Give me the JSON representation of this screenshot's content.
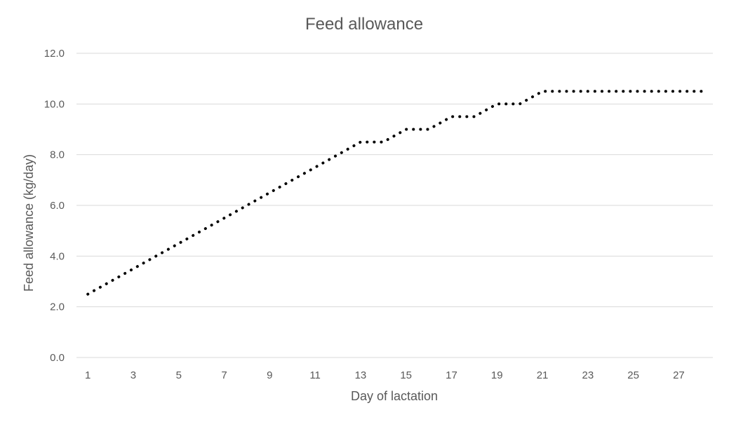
{
  "chart_data": {
    "type": "line",
    "title": "Feed allowance",
    "xlabel": "Day of lactation",
    "ylabel": "Feed allowance (kg/day)",
    "x": [
      1,
      2,
      3,
      4,
      5,
      6,
      7,
      8,
      9,
      10,
      11,
      12,
      13,
      14,
      15,
      16,
      17,
      18,
      19,
      20,
      21,
      22,
      23,
      24,
      25,
      26,
      27,
      28
    ],
    "x_tick_labels": [
      "1",
      "3",
      "5",
      "7",
      "9",
      "11",
      "13",
      "15",
      "17",
      "19",
      "21",
      "23",
      "25",
      "27"
    ],
    "y_tick_labels": [
      "0.0",
      "2.0",
      "4.0",
      "6.0",
      "8.0",
      "10.0",
      "12.0"
    ],
    "xlim": [
      0.5,
      28.5
    ],
    "ylim": [
      0,
      12
    ],
    "grid": true,
    "legend": "none",
    "series": [
      {
        "color": "#000000",
        "line_style": "dotted",
        "values": [
          2.5,
          3.0,
          3.5,
          4.0,
          4.5,
          5.0,
          5.5,
          6.0,
          6.5,
          7.0,
          7.5,
          8.0,
          8.5,
          8.5,
          9.0,
          9.0,
          9.5,
          9.5,
          10.0,
          10.0,
          10.5,
          10.5,
          10.5,
          10.5,
          10.5,
          10.5,
          10.5,
          10.5
        ]
      }
    ]
  }
}
